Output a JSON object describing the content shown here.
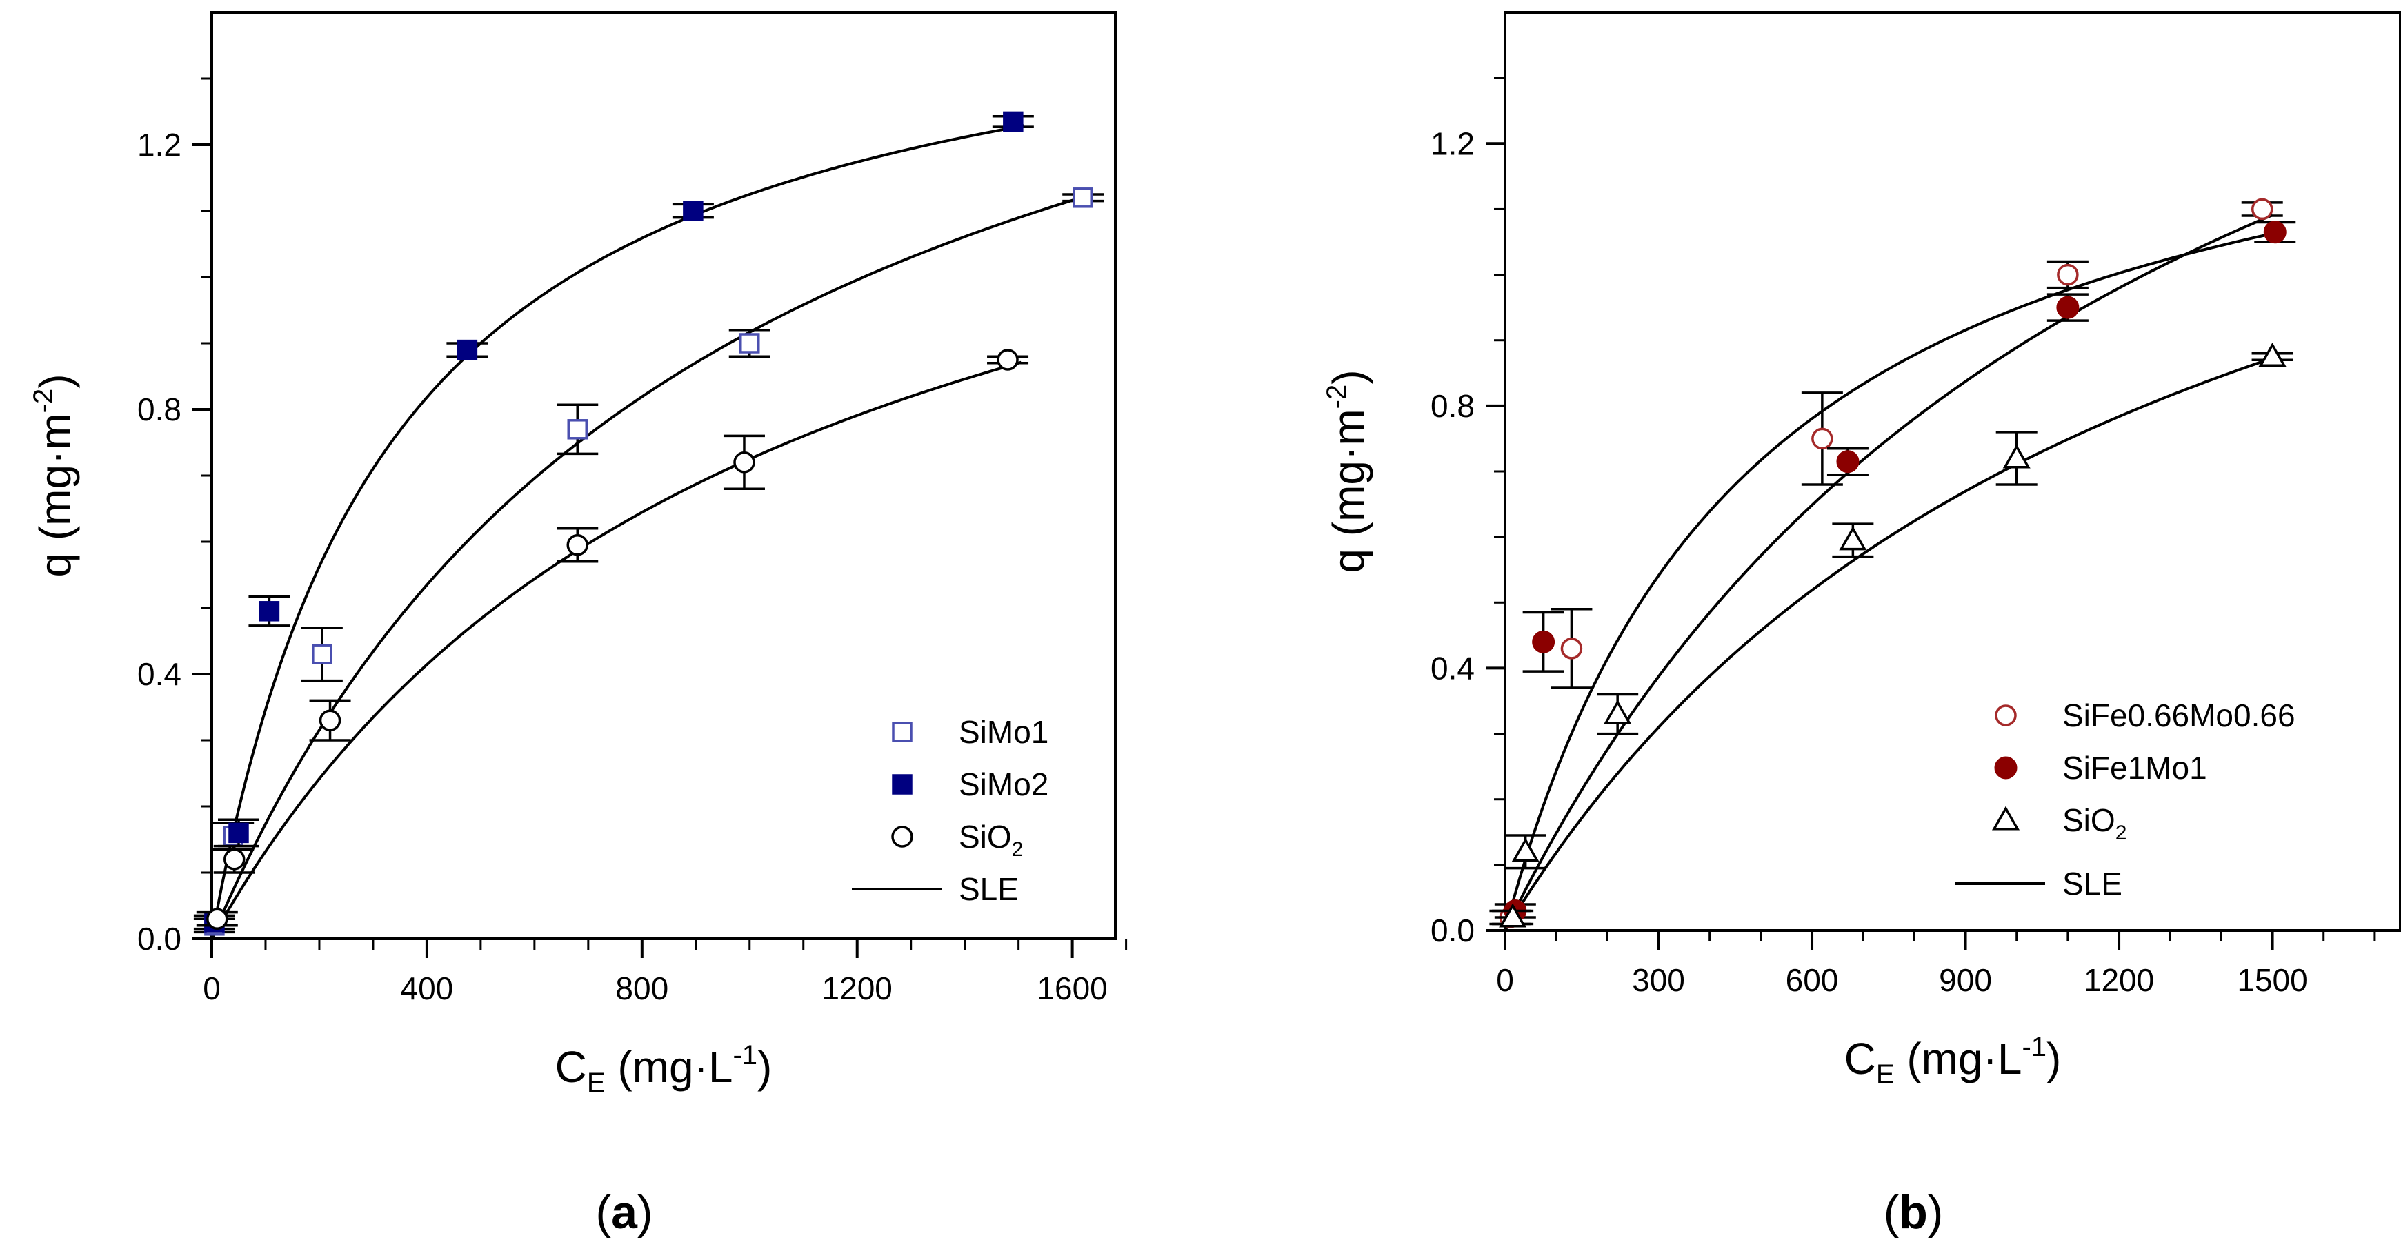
{
  "chart_data": [
    {
      "type": "scatter",
      "panel_label": "a",
      "xlabel": "C",
      "xlabel_sub": "E",
      "xlabel_unit": " (mg·L",
      "xlabel_sup": "-1",
      "xlabel_close": ")",
      "ylabel": "q (mg·m",
      "ylabel_sup": "-2",
      "ylabel_close": ")",
      "xlim": [
        0,
        1680
      ],
      "ylim": [
        0,
        1.4
      ],
      "xticks": [
        0,
        400,
        800,
        1200,
        1600
      ],
      "xticks_minor": [
        100,
        200,
        300,
        500,
        600,
        700,
        900,
        1000,
        1100,
        1300,
        1400,
        1500,
        1700
      ],
      "xtick_labels": [
        "0",
        "400",
        "800",
        "1200",
        "1600"
      ],
      "yticks": [
        0.0,
        0.4,
        0.8,
        1.2
      ],
      "yticks_minor": [
        0.1,
        0.2,
        0.3,
        0.5,
        0.6,
        0.7,
        0.9,
        1.0,
        1.1,
        1.3
      ],
      "ytick_labels": [
        "0.0",
        "0.4",
        "0.8",
        "1.2"
      ],
      "legend_position": "bottom-right",
      "series": [
        {
          "name": "SiMo1",
          "marker": "square-open",
          "color": "#4a4fb0",
          "x": [
            5,
            40,
            205,
            680,
            1000,
            1620
          ],
          "y": [
            0.02,
            0.155,
            0.43,
            0.77,
            0.9,
            1.12
          ],
          "err": [
            0.01,
            0.02,
            0.04,
            0.037,
            0.02,
            0.005
          ]
        },
        {
          "name": "SiMo2",
          "marker": "square-filled",
          "color": "#000080",
          "x": [
            5,
            50,
            107,
            475,
            895,
            1490
          ],
          "y": [
            0.025,
            0.16,
            0.495,
            0.89,
            1.1,
            1.235
          ],
          "err": [
            0.01,
            0.02,
            0.022,
            0.01,
            0.01,
            0.008
          ]
        },
        {
          "name": "SiO",
          "name_sub": "2",
          "marker": "circle-open",
          "color": "#000000",
          "x": [
            10,
            42,
            220,
            680,
            990,
            1480
          ],
          "y": [
            0.03,
            0.12,
            0.33,
            0.595,
            0.72,
            0.875
          ],
          "err": [
            0.01,
            0.02,
            0.03,
            0.025,
            0.04,
            0.005
          ]
        },
        {
          "name": "SLE",
          "marker": "line",
          "color": "#000000",
          "fits": [
            {
              "qmax": 1.75,
              "K": 0.0011,
              "xmax": 1620
            },
            {
              "qmax": 1.5,
              "K": 0.003,
              "xmax": 1510
            },
            {
              "qmax": 1.45,
              "K": 0.001,
              "xmax": 1505
            }
          ]
        }
      ]
    },
    {
      "type": "scatter",
      "panel_label": "b",
      "xlabel": "C",
      "xlabel_sub": "E",
      "xlabel_unit": " (mg·L",
      "xlabel_sup": "-1",
      "xlabel_close": ")",
      "ylabel": "q (mg·m",
      "ylabel_sup": "-2",
      "ylabel_close": ")",
      "xlim": [
        0,
        1750
      ],
      "ylim": [
        0,
        1.4
      ],
      "xticks": [
        0,
        300,
        600,
        900,
        1200,
        1500
      ],
      "xticks_minor": [
        100,
        200,
        400,
        500,
        700,
        800,
        1000,
        1100,
        1300,
        1400,
        1600,
        1700
      ],
      "xtick_labels": [
        "0",
        "300",
        "600",
        "900",
        "1200",
        "1500"
      ],
      "yticks": [
        0.0,
        0.4,
        0.8,
        1.2
      ],
      "yticks_minor": [
        0.1,
        0.2,
        0.3,
        0.5,
        0.6,
        0.7,
        0.9,
        1.0,
        1.1,
        1.3
      ],
      "ytick_labels": [
        "0.0",
        "0.4",
        "0.8",
        "1.2"
      ],
      "legend_position": "bottom-right",
      "series": [
        {
          "name": "SiFe0.66Mo0.66",
          "marker": "circle-open",
          "color": "#a52a2a",
          "x": [
            10,
            130,
            620,
            1100,
            1480
          ],
          "y": [
            0.02,
            0.43,
            0.75,
            1.0,
            1.1
          ],
          "err": [
            0.01,
            0.06,
            0.07,
            0.02,
            0.01
          ]
        },
        {
          "name": "SiFe1Mo1",
          "marker": "circle-filled",
          "color": "#8b0000",
          "x": [
            20,
            75,
            670,
            1100,
            1505
          ],
          "y": [
            0.03,
            0.44,
            0.715,
            0.95,
            1.065
          ],
          "err": [
            0.01,
            0.045,
            0.02,
            0.02,
            0.015
          ]
        },
        {
          "name": "SiO",
          "name_sub": "2",
          "marker": "triangle-open",
          "color": "#000000",
          "x": [
            15,
            40,
            220,
            680,
            1000,
            1500
          ],
          "y": [
            0.02,
            0.12,
            0.33,
            0.595,
            0.72,
            0.875
          ],
          "err": [
            0.01,
            0.025,
            0.03,
            0.025,
            0.04,
            0.005
          ]
        },
        {
          "name": "SLE",
          "marker": "line",
          "color": "#000000",
          "fits": [
            {
              "qmax": 2.0,
              "K": 0.0008,
              "xmax": 1500
            },
            {
              "qmax": 1.4,
              "K": 0.0021,
              "xmax": 1510
            },
            {
              "qmax": 1.6,
              "K": 0.0008,
              "xmax": 1500
            }
          ]
        }
      ]
    }
  ]
}
